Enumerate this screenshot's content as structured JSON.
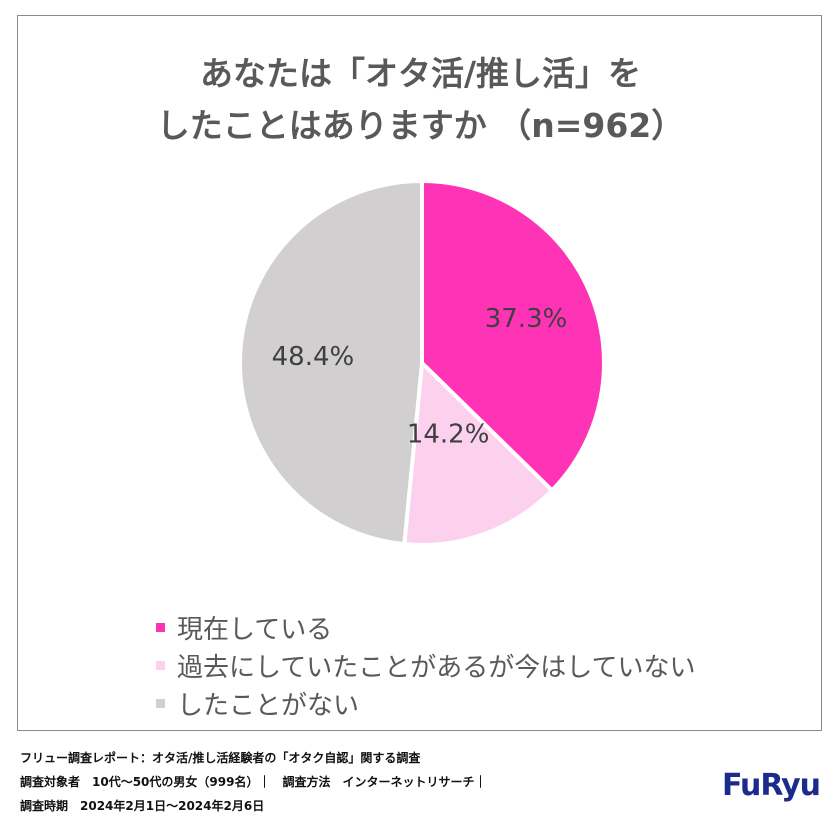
{
  "chart_data": {
    "type": "pie",
    "title_lines": [
      "あなたは「オタ活/推し活」を",
      "したことはありますか （n=962）"
    ],
    "slices": [
      {
        "name": "現在している",
        "value": 37.3,
        "label": "37.3%",
        "color": "#ff33b5"
      },
      {
        "name": "過去にしていたことがあるが今はしていない",
        "value": 14.2,
        "label": "14.2%",
        "color": "#fcd1ee"
      },
      {
        "name": "したことがない",
        "value": 48.4,
        "label": "48.4%",
        "color": "#d1cfd0"
      }
    ],
    "legend_position": "bottom"
  },
  "footer": {
    "line1": "フリュー調査レポート：オタ活/推し活経験者の「オタク自認」関する調査",
    "line2": "調査対象者　10代～50代の男女（999名）｜　調査方法　インターネットリサーチ｜",
    "line3": "調査時期　2024年2月1日～2024年2月6日"
  },
  "logo": {
    "text": "FuRyu"
  }
}
